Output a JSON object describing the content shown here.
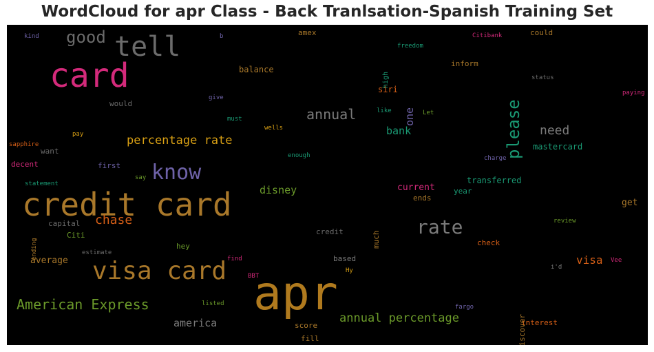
{
  "title": "WordCloud for apr Class - Back Tranlsation-Spanish Training Set",
  "chart_data": {
    "type": "wordcloud",
    "words": [
      {
        "text": "apr",
        "color": "#b07a1e"
      },
      {
        "text": "credit card",
        "color": "#a9782a"
      },
      {
        "text": "card",
        "color": "#d42a7b"
      },
      {
        "text": "visa card",
        "color": "#a9782a"
      },
      {
        "text": "tell",
        "color": "#6b6b6b"
      },
      {
        "text": "know",
        "color": "#6e62a8"
      },
      {
        "text": "rate",
        "color": "#7a7a7a"
      },
      {
        "text": "please",
        "color": "#1a9a74"
      },
      {
        "text": "good",
        "color": "#6b6b6b"
      },
      {
        "text": "American Express",
        "color": "#6b9a2a"
      },
      {
        "text": "annual",
        "color": "#7a7a7a"
      },
      {
        "text": "chase",
        "color": "#d65f17"
      },
      {
        "text": "percentage rate",
        "color": "#d9a014"
      },
      {
        "text": "annual percentage",
        "color": "#6b9a2a"
      },
      {
        "text": "need",
        "color": "#7a7a7a"
      },
      {
        "text": "disney",
        "color": "#6b9a2a"
      },
      {
        "text": "america",
        "color": "#7a7a7a"
      },
      {
        "text": "visa",
        "color": "#d65f17"
      },
      {
        "text": "one",
        "color": "#6e62a8"
      },
      {
        "text": "bank",
        "color": "#1a9a74"
      },
      {
        "text": "current",
        "color": "#d42a7b"
      },
      {
        "text": "get",
        "color": "#a9782a"
      },
      {
        "text": "balance",
        "color": "#a9782a"
      },
      {
        "text": "average",
        "color": "#a9782a"
      },
      {
        "text": "mastercard",
        "color": "#1a9a74"
      },
      {
        "text": "transferred",
        "color": "#1a9a74"
      },
      {
        "text": "could",
        "color": "#a9782a"
      },
      {
        "text": "inform",
        "color": "#a9782a"
      },
      {
        "text": "siri",
        "color": "#d65f17"
      },
      {
        "text": "amex",
        "color": "#a9782a"
      },
      {
        "text": "first",
        "color": "#6e62a8"
      },
      {
        "text": "want",
        "color": "#6b6b6b"
      },
      {
        "text": "decent",
        "color": "#d42a7b"
      },
      {
        "text": "capital",
        "color": "#6b6b6b"
      },
      {
        "text": "Citi",
        "color": "#6b9a2a"
      },
      {
        "text": "hey",
        "color": "#6b9a2a"
      },
      {
        "text": "credit",
        "color": "#6b6b6b"
      },
      {
        "text": "much",
        "color": "#a9782a"
      },
      {
        "text": "based",
        "color": "#7a7a7a"
      },
      {
        "text": "check",
        "color": "#d65f17"
      },
      {
        "text": "interest",
        "color": "#d65f17"
      },
      {
        "text": "Discover",
        "color": "#a9782a"
      },
      {
        "text": "score",
        "color": "#a9782a"
      },
      {
        "text": "fill",
        "color": "#a9782a"
      },
      {
        "text": "year",
        "color": "#1a9a74"
      },
      {
        "text": "ends",
        "color": "#a9782a"
      },
      {
        "text": "would",
        "color": "#6b6b6b"
      },
      {
        "text": "high",
        "color": "#1a9a74"
      },
      {
        "text": "freedom",
        "color": "#1a9a74"
      },
      {
        "text": "Citibank",
        "color": "#d42a7b"
      },
      {
        "text": "status",
        "color": "#6b6b6b"
      },
      {
        "text": "paying",
        "color": "#d42a7b"
      },
      {
        "text": "kind",
        "color": "#6e62a8"
      },
      {
        "text": "b",
        "color": "#6e62a8"
      },
      {
        "text": "give",
        "color": "#6e62a8"
      },
      {
        "text": "must",
        "color": "#1a9a74"
      },
      {
        "text": "like",
        "color": "#1a9a74"
      },
      {
        "text": "Let",
        "color": "#6b9a2a"
      },
      {
        "text": "wells",
        "color": "#d9a014"
      },
      {
        "text": "pay",
        "color": "#d9a014"
      },
      {
        "text": "sapphire",
        "color": "#d65f17"
      },
      {
        "text": "enough",
        "color": "#1a9a74"
      },
      {
        "text": "charge",
        "color": "#6e62a8"
      },
      {
        "text": "statement",
        "color": "#1a9a74"
      },
      {
        "text": "say",
        "color": "#6b9a2a"
      },
      {
        "text": "ending",
        "color": "#a9782a"
      },
      {
        "text": "review",
        "color": "#6b9a2a"
      },
      {
        "text": "estimate",
        "color": "#6b6b6b"
      },
      {
        "text": "find",
        "color": "#d42a7b"
      },
      {
        "text": "BBT",
        "color": "#d42a7b"
      },
      {
        "text": "Hy",
        "color": "#d9a014"
      },
      {
        "text": "i'd",
        "color": "#7a7a7a"
      },
      {
        "text": "Vee",
        "color": "#d42a7b"
      },
      {
        "text": "listed",
        "color": "#6b9a2a"
      },
      {
        "text": "fargo",
        "color": "#6e62a8"
      }
    ]
  }
}
